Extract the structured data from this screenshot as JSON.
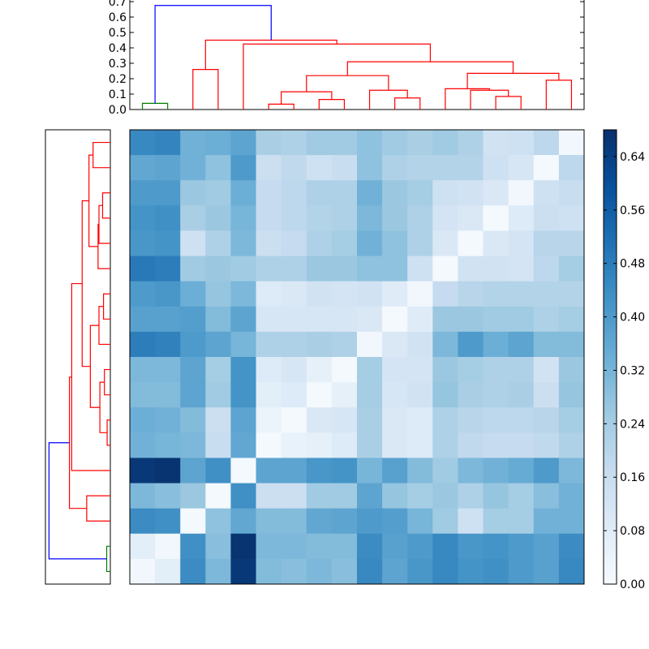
{
  "chart_data": {
    "type": "heatmap",
    "title": "",
    "xlabel": "",
    "ylabel": "",
    "n": 18,
    "cmap": "Blues",
    "grid": false,
    "matrix": [
      [
        0.45,
        0.46,
        0.33,
        0.34,
        0.37,
        0.23,
        0.22,
        0.25,
        0.25,
        0.28,
        0.25,
        0.23,
        0.25,
        0.22,
        0.13,
        0.14,
        0.19,
        0.02
      ],
      [
        0.36,
        0.37,
        0.33,
        0.28,
        0.4,
        0.15,
        0.18,
        0.14,
        0.16,
        0.28,
        0.22,
        0.21,
        0.21,
        0.21,
        0.14,
        0.11,
        0.01,
        0.19
      ],
      [
        0.4,
        0.4,
        0.26,
        0.25,
        0.34,
        0.17,
        0.19,
        0.22,
        0.22,
        0.33,
        0.26,
        0.24,
        0.14,
        0.13,
        0.1,
        0.02,
        0.14,
        0.16
      ],
      [
        0.42,
        0.43,
        0.23,
        0.26,
        0.32,
        0.17,
        0.19,
        0.21,
        0.22,
        0.31,
        0.26,
        0.22,
        0.12,
        0.1,
        0.01,
        0.09,
        0.15,
        0.14
      ],
      [
        0.41,
        0.42,
        0.14,
        0.22,
        0.31,
        0.15,
        0.17,
        0.22,
        0.24,
        0.33,
        0.28,
        0.22,
        0.1,
        0.01,
        0.1,
        0.12,
        0.2,
        0.2
      ],
      [
        0.49,
        0.48,
        0.25,
        0.26,
        0.25,
        0.22,
        0.22,
        0.26,
        0.26,
        0.28,
        0.28,
        0.14,
        0.01,
        0.13,
        0.13,
        0.12,
        0.19,
        0.24
      ],
      [
        0.4,
        0.41,
        0.34,
        0.27,
        0.31,
        0.09,
        0.1,
        0.13,
        0.12,
        0.13,
        0.08,
        0.02,
        0.17,
        0.2,
        0.21,
        0.21,
        0.21,
        0.21
      ],
      [
        0.38,
        0.38,
        0.39,
        0.3,
        0.37,
        0.11,
        0.11,
        0.11,
        0.11,
        0.1,
        0.01,
        0.08,
        0.26,
        0.26,
        0.25,
        0.25,
        0.22,
        0.24
      ],
      [
        0.48,
        0.47,
        0.4,
        0.37,
        0.32,
        0.22,
        0.22,
        0.23,
        0.22,
        0.02,
        0.1,
        0.13,
        0.31,
        0.4,
        0.34,
        0.37,
        0.3,
        0.3
      ],
      [
        0.31,
        0.31,
        0.37,
        0.24,
        0.42,
        0.09,
        0.11,
        0.06,
        0.01,
        0.24,
        0.12,
        0.12,
        0.26,
        0.24,
        0.22,
        0.22,
        0.13,
        0.26
      ],
      [
        0.3,
        0.3,
        0.37,
        0.25,
        0.42,
        0.07,
        0.09,
        0.01,
        0.06,
        0.24,
        0.11,
        0.13,
        0.27,
        0.23,
        0.22,
        0.23,
        0.15,
        0.27
      ],
      [
        0.34,
        0.33,
        0.3,
        0.15,
        0.37,
        0.04,
        0.01,
        0.1,
        0.11,
        0.23,
        0.1,
        0.09,
        0.22,
        0.2,
        0.19,
        0.19,
        0.2,
        0.24
      ],
      [
        0.33,
        0.32,
        0.31,
        0.16,
        0.36,
        0.01,
        0.05,
        0.06,
        0.09,
        0.23,
        0.1,
        0.09,
        0.22,
        0.18,
        0.17,
        0.17,
        0.18,
        0.22
      ],
      [
        0.66,
        0.67,
        0.37,
        0.43,
        0.01,
        0.37,
        0.37,
        0.41,
        0.42,
        0.32,
        0.38,
        0.3,
        0.25,
        0.31,
        0.33,
        0.35,
        0.4,
        0.31
      ],
      [
        0.31,
        0.29,
        0.26,
        0.01,
        0.43,
        0.15,
        0.15,
        0.25,
        0.25,
        0.37,
        0.27,
        0.24,
        0.26,
        0.22,
        0.27,
        0.24,
        0.29,
        0.33
      ],
      [
        0.44,
        0.43,
        0.01,
        0.28,
        0.36,
        0.3,
        0.3,
        0.36,
        0.37,
        0.4,
        0.39,
        0.32,
        0.25,
        0.14,
        0.24,
        0.24,
        0.33,
        0.33
      ],
      [
        0.07,
        0.02,
        0.43,
        0.29,
        0.67,
        0.31,
        0.31,
        0.3,
        0.3,
        0.44,
        0.38,
        0.4,
        0.45,
        0.41,
        0.42,
        0.4,
        0.38,
        0.44
      ],
      [
        0.02,
        0.07,
        0.44,
        0.31,
        0.66,
        0.3,
        0.29,
        0.31,
        0.29,
        0.45,
        0.37,
        0.41,
        0.45,
        0.42,
        0.43,
        0.4,
        0.38,
        0.45
      ]
    ],
    "colorbar": {
      "min": 0.0,
      "max": 0.68,
      "ticks": [
        0.0,
        0.08,
        0.16,
        0.24,
        0.32,
        0.4,
        0.48,
        0.56,
        0.64
      ],
      "tick_labels": [
        "0.00",
        "0.08",
        "0.16",
        "0.24",
        "0.32",
        "0.40",
        "0.48",
        "0.56",
        "0.64"
      ]
    },
    "top_dendrogram": {
      "ylim": [
        0,
        0.7
      ],
      "tick_labels": [
        "0.0",
        "0.1",
        "0.2",
        "0.3",
        "0.4",
        "0.5",
        "0.6",
        "0.7"
      ],
      "ticks": [
        0,
        0.1,
        0.2,
        0.3,
        0.4,
        0.5,
        0.6,
        0.7
      ],
      "links": [
        {
          "left": 0,
          "right": 1,
          "height": 0.04,
          "color": "#008000"
        },
        {
          "left": 2,
          "right": 3,
          "height": 0.26,
          "color": "#ff0000"
        },
        {
          "left": 5,
          "right": 6,
          "height": 0.035,
          "color": "#ff0000"
        },
        {
          "left": 7,
          "right": 8,
          "height": 0.065,
          "color": "#ff0000"
        },
        {
          "left": "5-6",
          "right": "7-8",
          "height": 0.115,
          "color": "#ff0000"
        },
        {
          "left": 10,
          "right": 11,
          "height": 0.075,
          "color": "#ff0000"
        },
        {
          "left": 9,
          "right": "10-11",
          "height": 0.125,
          "color": "#ff0000"
        },
        {
          "left": "5-8",
          "right": "9-11",
          "height": 0.22,
          "color": "#ff0000"
        },
        {
          "left": 14,
          "right": 15,
          "height": 0.085,
          "color": "#ff0000"
        },
        {
          "left": 13,
          "right": "14-15",
          "height": 0.125,
          "color": "#ff0000"
        },
        {
          "left": 12,
          "right": "13-15",
          "height": 0.135,
          "color": "#ff0000"
        },
        {
          "left": 16,
          "right": 17,
          "height": 0.19,
          "color": "#ff0000"
        },
        {
          "left": "12-15",
          "right": "16-17",
          "height": 0.235,
          "color": "#ff0000"
        },
        {
          "left": "5-11",
          "right": "12-17",
          "height": 0.31,
          "color": "#ff0000"
        },
        {
          "left": 4,
          "right": "5-17",
          "height": 0.425,
          "color": "#ff0000"
        },
        {
          "left": "2-3",
          "right": "4-17",
          "height": 0.45,
          "color": "#ff0000"
        },
        {
          "left": "0-1",
          "right": "2-17",
          "height": 0.675,
          "color": "#0000ff"
        }
      ]
    },
    "left_dendrogram": {
      "links": [
        {
          "left": 16,
          "right": 17,
          "height": 0.04,
          "color": "#008000"
        },
        {
          "left": 14,
          "right": 15,
          "height": 0.26,
          "color": "#ff0000"
        },
        {
          "left": 11,
          "right": 12,
          "height": 0.035,
          "color": "#ff0000"
        },
        {
          "left": 9,
          "right": 10,
          "height": 0.065,
          "color": "#ff0000"
        },
        {
          "left": "11-12",
          "right": "9-10",
          "height": 0.115,
          "color": "#ff0000"
        },
        {
          "left": 6,
          "right": 7,
          "height": 0.075,
          "color": "#ff0000"
        },
        {
          "left": 8,
          "right": "6-7",
          "height": 0.125,
          "color": "#ff0000"
        },
        {
          "left": "9-12",
          "right": "6-8",
          "height": 0.22,
          "color": "#ff0000"
        },
        {
          "left": 2,
          "right": 3,
          "height": 0.085,
          "color": "#ff0000"
        },
        {
          "left": 4,
          "right": "2-3",
          "height": 0.125,
          "color": "#ff0000"
        },
        {
          "left": 5,
          "right": "2-4",
          "height": 0.135,
          "color": "#ff0000"
        },
        {
          "left": 0,
          "right": 1,
          "height": 0.19,
          "color": "#ff0000"
        },
        {
          "left": "2-5",
          "right": "0-1",
          "height": 0.235,
          "color": "#ff0000"
        },
        {
          "left": "6-12",
          "right": "0-5",
          "height": 0.31,
          "color": "#ff0000"
        },
        {
          "left": 13,
          "right": "0-12",
          "height": 0.425,
          "color": "#ff0000"
        },
        {
          "left": "14-15",
          "right": "0-13",
          "height": 0.45,
          "color": "#ff0000"
        },
        {
          "left": "16-17",
          "right": "0-15",
          "height": 0.675,
          "color": "#0000ff"
        }
      ]
    }
  }
}
